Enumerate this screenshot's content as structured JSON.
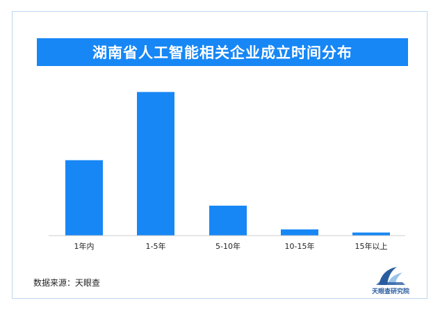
{
  "chart_data": {
    "type": "bar",
    "title": "湖南省人工智能相关企业成立时间分布",
    "categories": [
      "1年内",
      "1-5年",
      "5-10年",
      "10-15年",
      "15年以上"
    ],
    "values": [
      36.5,
      69.5,
      14.5,
      3,
      1.5
    ],
    "ylim": [
      0,
      75
    ],
    "grid": false,
    "legend": "none",
    "bar_color": "#1787f5",
    "xlabel": "",
    "ylabel": ""
  },
  "footer": {
    "source": "数据来源：天眼查",
    "logo_text": "天眼查研究院"
  },
  "colors": {
    "accent": "#1787f5",
    "logo_dark": "#2a5d9f",
    "logo_light": "#9cc4ea"
  }
}
